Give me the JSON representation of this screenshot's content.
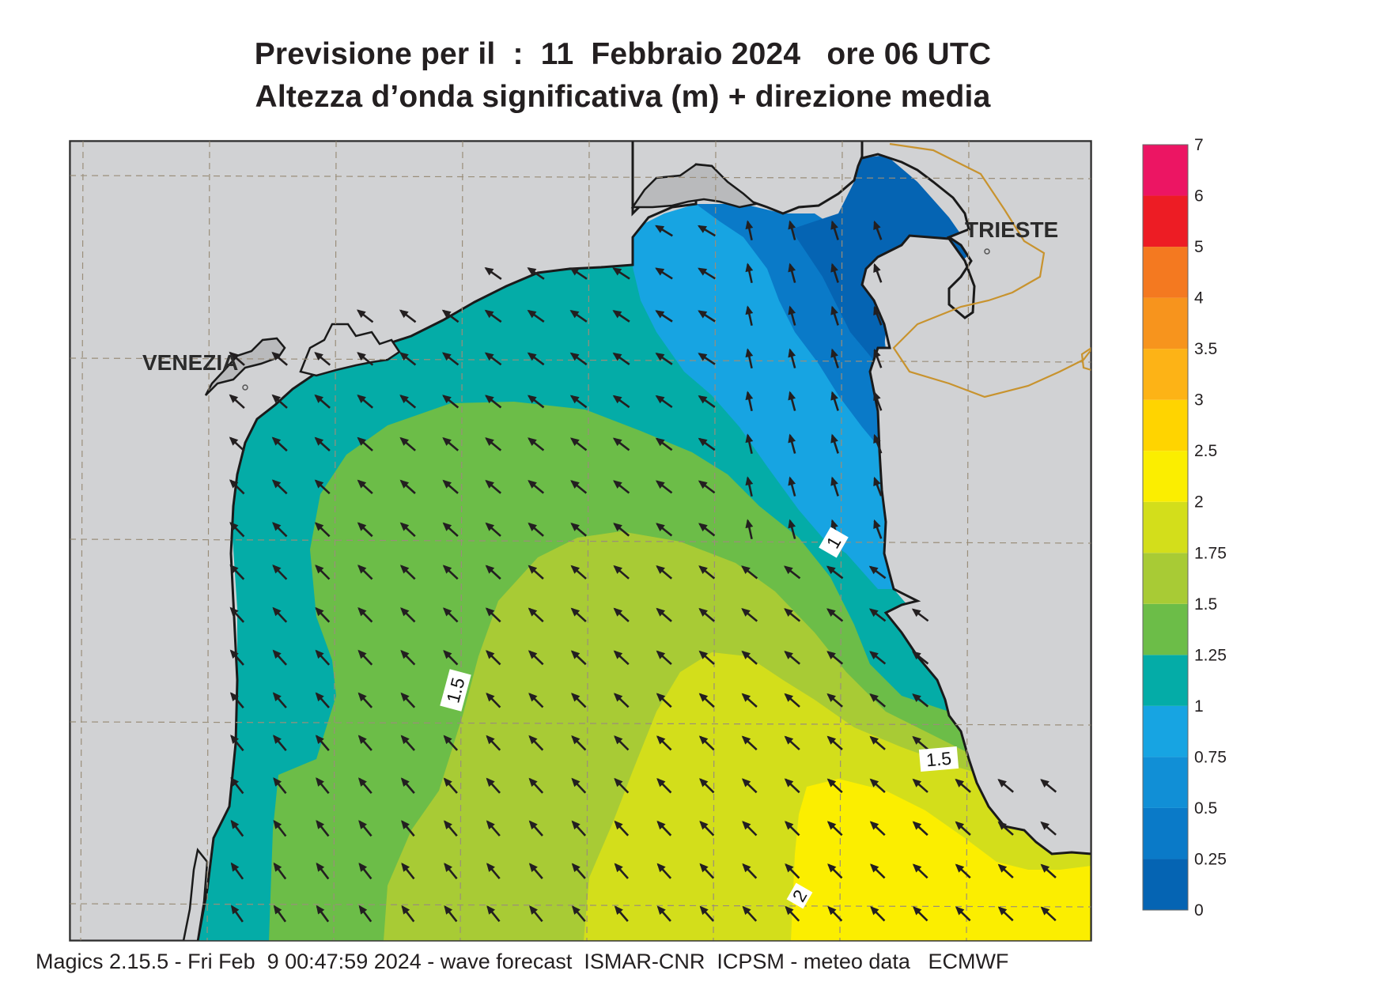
{
  "title": {
    "line1": "Previsione per il  :  11  Febbraio 2024   ore 06 UTC",
    "line2": "Altezza d’onda significativa (m) + direzione media"
  },
  "footer": "Magics 2.15.5 - Fri Feb  9 00:47:59 2024 - wave forecast  ISMAR-CNR  ICPSM - meteo data   ECMWF",
  "places": {
    "venezia": "VENEZIA",
    "trieste": "TRIESTE"
  },
  "contour_labels": [
    "1",
    "1.5",
    "1.5",
    "2"
  ],
  "colorbar": {
    "labels": [
      "0",
      "0.25",
      "0.5",
      "0.75",
      "1",
      "1.25",
      "1.5",
      "1.75",
      "2",
      "2.5",
      "3",
      "3.5",
      "4",
      "5",
      "6",
      "7"
    ],
    "colors": [
      "#0564b3",
      "#0a7ac8",
      "#118fd6",
      "#17a4e2",
      "#04aca7",
      "#6cbd48",
      "#a8cb35",
      "#d3de1b",
      "#fbee00",
      "#ffd400",
      "#fdb316",
      "#f7941d",
      "#f47920",
      "#ed1c24",
      "#ec1563"
    ]
  },
  "legend_colors": {
    "land": "#d1d2d4",
    "coast": "#1a1a1a",
    "border": "#c8932e",
    "arrow": "#231f20"
  }
}
